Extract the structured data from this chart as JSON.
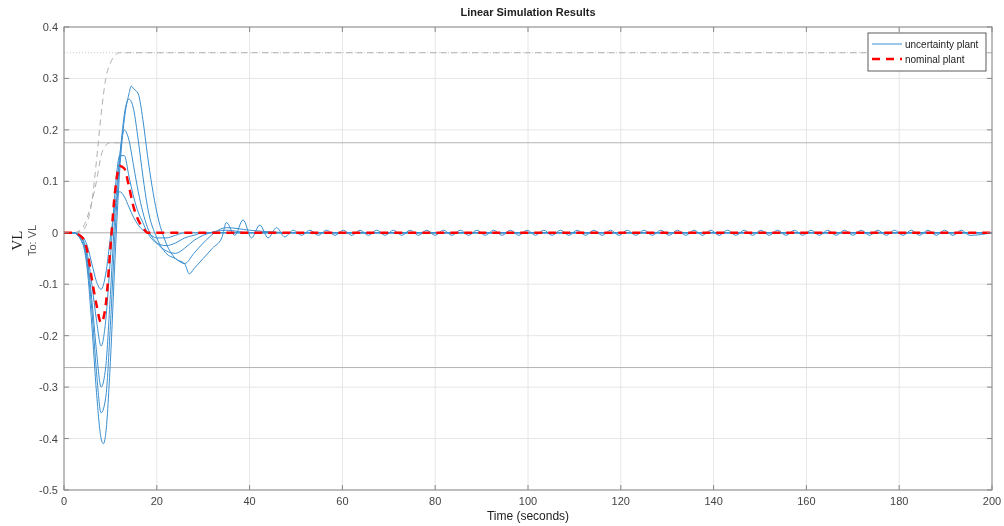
{
  "chart_data": {
    "type": "line",
    "title": "Linear Simulation Results",
    "xlabel": "Time (seconds)",
    "ylabel": "VL",
    "annotations": [
      "To: VL"
    ],
    "x": [
      0,
      2,
      4,
      5,
      6,
      7,
      8,
      9,
      10,
      11,
      12,
      13,
      14,
      15,
      16,
      17,
      18,
      20,
      22,
      24,
      26,
      28,
      30,
      35,
      40,
      50,
      200
    ],
    "xlim": [
      0,
      200
    ],
    "xticks": [
      0,
      20,
      40,
      60,
      80,
      100,
      120,
      140,
      160,
      180,
      200
    ],
    "ylim": [
      -0.5,
      0.4
    ],
    "yticks": [
      -0.5,
      -0.4,
      -0.3,
      -0.2,
      -0.1,
      0,
      0.1,
      0.2,
      0.3,
      0.4
    ],
    "grid": true,
    "legend": "top right",
    "ref_lines": [
      {
        "axis": "y",
        "value": 0.35,
        "color": "#c8c8c8",
        "line_style": "dotted"
      },
      {
        "axis": "y",
        "value": 0.175,
        "color": "#b4b4b4",
        "line_style": "solid"
      },
      {
        "axis": "y",
        "value": -0.262,
        "color": "#b4b4b4",
        "line_style": "solid"
      },
      {
        "axis": "y",
        "value": 0,
        "color": "#b4b4b4",
        "line_style": "solid"
      }
    ],
    "series": [
      {
        "color": "#b0b0b0",
        "line_style": "dashed",
        "x": [
          0,
          2,
          4,
          5,
          6,
          7,
          8,
          9,
          10,
          11,
          12,
          14,
          200
        ],
        "values": [
          0,
          0,
          0.005,
          0.02,
          0.06,
          0.14,
          0.23,
          0.3,
          0.33,
          0.345,
          0.35,
          0.35,
          0.35
        ]
      },
      {
        "color": "#b0b0b0",
        "line_style": "dashed",
        "x": [
          0,
          2,
          4,
          5,
          6,
          7,
          8,
          9,
          10,
          11,
          12
        ],
        "values": [
          0,
          0,
          0.01,
          0.03,
          0.06,
          0.1,
          0.15,
          0.17,
          0.175,
          0.175,
          0.175
        ]
      },
      {
        "name": "uncertainty plant",
        "color": "#3a8fd0",
        "line_style": "solid",
        "x": [
          0,
          2,
          4,
          5,
          6,
          7,
          8,
          8.5,
          9,
          10,
          11,
          12,
          13,
          14,
          14.5,
          15,
          16,
          17,
          18,
          20,
          22,
          24,
          26,
          27,
          28,
          30,
          32,
          34,
          35,
          36.8,
          38.6,
          40.4,
          42.2,
          44,
          45.8,
          47.6,
          49.4,
          51.2,
          53,
          54.8,
          56.6,
          58.4,
          60.2,
          62,
          63.8,
          65.6,
          67.4,
          69.2,
          71,
          72.8,
          74.6,
          76.4,
          78.2,
          80,
          81.8,
          83.6,
          85.4,
          87.2,
          89,
          90.8,
          92.6,
          94.4,
          96.2,
          98,
          99.8,
          101.6,
          103.4,
          105.2,
          107,
          108.8,
          110.6,
          112.4,
          114.2,
          116,
          117.8,
          119.6,
          121.4,
          123.2,
          125,
          126.8,
          128.6,
          130.4,
          132.2,
          134,
          135.8,
          137.6,
          139.4,
          141.2,
          143,
          144.8,
          146.6,
          148.4,
          150.2,
          152,
          153.8,
          155.6,
          157.4,
          159.2,
          161,
          162.8,
          164.6,
          166.4,
          168.2,
          170,
          171.8,
          173.6,
          175.4,
          177.2,
          179,
          180.8,
          182.6,
          184.4,
          186.2,
          188,
          189.8,
          191.6,
          193.4,
          195.2,
          200
        ],
        "values": [
          0,
          0,
          -0.02,
          -0.07,
          -0.18,
          -0.31,
          -0.4,
          -0.41,
          -0.39,
          -0.25,
          -0.05,
          0.12,
          0.22,
          0.27,
          0.285,
          0.28,
          0.27,
          0.22,
          0.15,
          0.04,
          -0.02,
          -0.05,
          -0.06,
          -0.08,
          -0.07,
          -0.05,
          -0.03,
          -0.01,
          0.02,
          -0.005,
          0.025,
          -0.01,
          0.015,
          -0.01,
          0.01,
          -0.008,
          0.005,
          -0.005,
          0.005,
          -0.005,
          0.005,
          -0.005,
          0.005,
          -0.005,
          0.005,
          -0.005,
          0.005,
          -0.005,
          0.005,
          -0.005,
          0.005,
          -0.005,
          0.005,
          -0.005,
          0.005,
          -0.005,
          0.005,
          -0.005,
          0.005,
          -0.005,
          0.005,
          -0.005,
          0.005,
          -0.005,
          0.005,
          -0.005,
          0.005,
          -0.005,
          0.005,
          -0.005,
          0.005,
          -0.005,
          0.005,
          -0.005,
          0.005,
          -0.005,
          0.005,
          -0.005,
          0.005,
          -0.005,
          0.005,
          -0.005,
          0.005,
          -0.005,
          0.005,
          -0.005,
          0.005,
          -0.005,
          0.005,
          -0.005,
          0.005,
          -0.005,
          0.005,
          -0.005,
          0.005,
          -0.005,
          0.005,
          -0.005,
          0.005,
          -0.005,
          0.005,
          -0.005,
          0.005,
          -0.005,
          0.005,
          -0.005,
          0.005,
          -0.005,
          0.005,
          -0.005,
          0.005,
          -0.005,
          0.005,
          -0.005,
          0.005,
          -0.005,
          0.005,
          -0.005,
          0
        ]
      },
      {
        "color": "#3a8fd0",
        "line_style": "solid",
        "values": [
          0,
          0,
          -0.02,
          -0.06,
          -0.15,
          -0.27,
          -0.35,
          -0.32,
          -0.18,
          0,
          0.14,
          0.23,
          0.26,
          0.24,
          0.18,
          0.11,
          0.05,
          -0.01,
          -0.04,
          -0.05,
          -0.06,
          -0.04,
          -0.02,
          0.01,
          0.005,
          0,
          0
        ]
      },
      {
        "color": "#3a8fd0",
        "line_style": "solid",
        "values": [
          0,
          0,
          -0.015,
          -0.05,
          -0.13,
          -0.23,
          -0.3,
          -0.26,
          -0.12,
          0.04,
          0.15,
          0.2,
          0.18,
          0.13,
          0.08,
          0.04,
          0.01,
          -0.02,
          -0.035,
          -0.04,
          -0.03,
          -0.015,
          -0.005,
          0.005,
          0,
          0,
          0
        ]
      },
      {
        "color": "#3a8fd0",
        "line_style": "solid",
        "values": [
          0,
          0,
          -0.012,
          -0.04,
          -0.1,
          -0.17,
          -0.22,
          -0.17,
          -0.05,
          0.08,
          0.15,
          0.15,
          0.11,
          0.07,
          0.04,
          0.02,
          0,
          -0.02,
          -0.025,
          -0.02,
          -0.01,
          -0.005,
          0,
          0,
          0,
          0,
          0
        ]
      },
      {
        "color": "#3a8fd0",
        "line_style": "solid",
        "values": [
          0,
          0,
          -0.008,
          -0.025,
          -0.06,
          -0.095,
          -0.11,
          -0.08,
          -0.01,
          0.05,
          0.08,
          0.07,
          0.05,
          0.03,
          0.015,
          0.005,
          0,
          -0.01,
          -0.01,
          -0.005,
          0,
          0,
          0,
          0,
          0,
          0,
          0
        ]
      },
      {
        "name": "nominal plant",
        "color": "#ff0000",
        "line_style": "dashed",
        "values": [
          0,
          0,
          -0.01,
          -0.035,
          -0.09,
          -0.14,
          -0.175,
          -0.14,
          -0.03,
          0.08,
          0.13,
          0.125,
          0.09,
          0.05,
          0.025,
          0.01,
          0,
          0,
          0,
          0,
          0,
          0,
          0,
          0,
          0,
          0,
          0
        ]
      }
    ]
  }
}
